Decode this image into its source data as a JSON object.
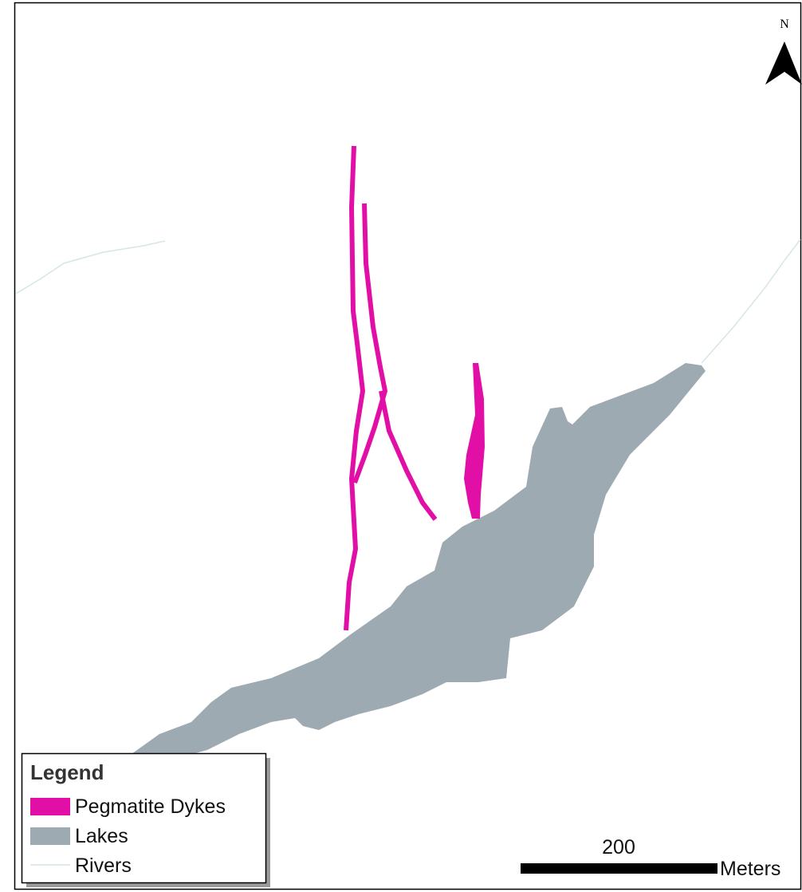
{
  "north_label": "N",
  "legend": {
    "title": "Legend",
    "items": [
      "Pegmatite Dykes",
      "Lakes",
      "Rivers"
    ]
  },
  "scale_bar": {
    "distance": 200,
    "unit": "Meters"
  }
}
